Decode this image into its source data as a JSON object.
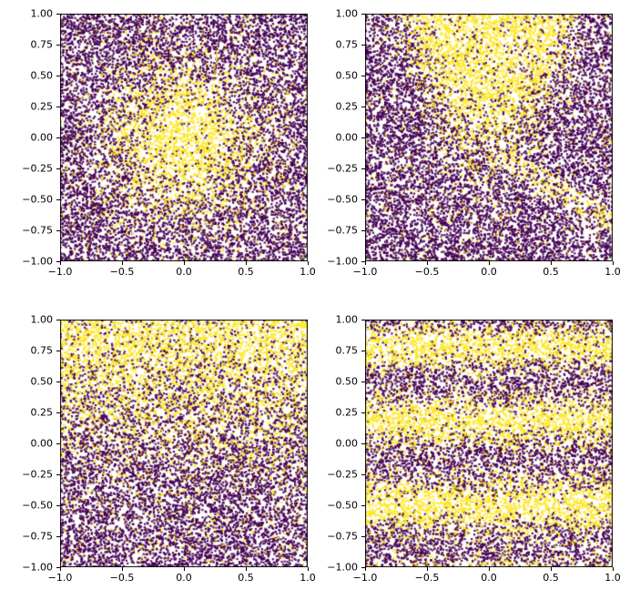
{
  "figure": {
    "background": "#ffffff",
    "kind": "2x2 grid of scatter plots (viridis binary-labeled point clouds)"
  },
  "chart_data": [
    {
      "type": "scatter",
      "position": "top-left",
      "title": "",
      "xlabel": "",
      "ylabel": "",
      "x_range": [
        -1,
        1
      ],
      "y_range": [
        -1,
        1
      ],
      "x_ticks": [
        -1.0,
        -0.5,
        0.0,
        0.5,
        1.0
      ],
      "x_tick_labels": [
        "−1.0",
        "−0.5",
        "0.0",
        "0.5",
        "1.0"
      ],
      "y_ticks": [
        1.0,
        0.75,
        0.5,
        0.25,
        0.0,
        -0.25,
        -0.5,
        -0.75,
        -1.0
      ],
      "y_tick_labels": [
        "1.00",
        "0.75",
        "0.50",
        "0.25",
        "0.00",
        "−0.25",
        "−0.50",
        "−0.75",
        "−1.00"
      ],
      "grid": false,
      "legend": false,
      "n_points": 12000,
      "marker_size_px": 2.2,
      "colormap": "viridis",
      "colors": {
        "low": "#440154",
        "high": "#fde725"
      },
      "pattern": {
        "kind": "radial_blob",
        "center": [
          0,
          0
        ],
        "sigma": 0.38,
        "base_rate": 0.07,
        "peak_rate": 0.95
      },
      "description": "Dense yellow cluster at the center fading radially into purple noise"
    },
    {
      "type": "scatter",
      "position": "top-right",
      "title": "",
      "xlabel": "",
      "ylabel": "",
      "x_range": [
        -1,
        1
      ],
      "y_range": [
        -1,
        1
      ],
      "x_ticks": [
        -1.0,
        -0.5,
        0.0,
        0.5,
        1.0
      ],
      "x_tick_labels": [
        "−1.0",
        "−0.5",
        "0.0",
        "0.5",
        "1.0"
      ],
      "y_ticks": [
        1.0,
        0.75,
        0.5,
        0.25,
        0.0,
        -0.25,
        -0.5,
        -0.75,
        -1.0
      ],
      "y_tick_labels": [
        "1.00",
        "0.75",
        "0.50",
        "0.25",
        "0.00",
        "−0.25",
        "−0.50",
        "−0.75",
        "−1.00"
      ],
      "grid": false,
      "legend": false,
      "n_points": 12000,
      "marker_size_px": 2.2,
      "colormap": "viridis",
      "colors": {
        "low": "#440154",
        "high": "#fde725"
      },
      "pattern": {
        "kind": "cone_and_stripe",
        "parabola_a": 2.2,
        "parabola_c": -0.05,
        "steepness": 5,
        "stripe_slope": -0.6,
        "stripe_intercept": -0.08,
        "stripe_halfwidth": 0.1,
        "base_rate": 0.07,
        "peak_rate": 0.9
      },
      "description": "Yellow cone widening toward the top center plus a faint diagonal yellow band descending to the lower right"
    },
    {
      "type": "scatter",
      "position": "bottom-left",
      "title": "",
      "xlabel": "",
      "ylabel": "",
      "x_range": [
        -1,
        1
      ],
      "y_range": [
        -1,
        1
      ],
      "x_ticks": [
        -1.0,
        -0.5,
        0.0,
        0.5,
        1.0
      ],
      "x_tick_labels": [
        "−1.0",
        "−0.5",
        "0.0",
        "0.5",
        "1.0"
      ],
      "y_ticks": [
        1.0,
        0.75,
        0.5,
        0.25,
        0.0,
        -0.25,
        -0.5,
        -0.75,
        -1.0
      ],
      "y_tick_labels": [
        "1.00",
        "0.75",
        "0.50",
        "0.25",
        "0.00",
        "−0.25",
        "−0.50",
        "−0.75",
        "−1.00"
      ],
      "grid": false,
      "legend": false,
      "n_points": 12000,
      "marker_size_px": 2.2,
      "colormap": "viridis",
      "colors": {
        "low": "#440154",
        "high": "#fde725"
      },
      "pattern": {
        "kind": "top_gradient",
        "center_y": 0.3,
        "steepness": 3.2,
        "base_rate": 0.06,
        "peak_rate": 0.92
      },
      "description": "Yellow density increasing toward the top edge, purple toward the bottom"
    },
    {
      "type": "scatter",
      "position": "bottom-right",
      "title": "",
      "xlabel": "",
      "ylabel": "",
      "x_range": [
        -1,
        1
      ],
      "y_range": [
        -1,
        1
      ],
      "x_ticks": [
        -1.0,
        -0.5,
        0.0,
        0.5,
        1.0
      ],
      "x_tick_labels": [
        "−1.0",
        "−0.5",
        "0.0",
        "0.5",
        "1.0"
      ],
      "y_ticks": [
        1.0,
        0.75,
        0.5,
        0.25,
        0.0,
        -0.25,
        -0.5,
        -0.75,
        -1.0
      ],
      "y_tick_labels": [
        "1.00",
        "0.75",
        "0.50",
        "0.25",
        "0.00",
        "−0.25",
        "−0.50",
        "−0.75",
        "−1.00"
      ],
      "grid": false,
      "legend": false,
      "n_points": 12000,
      "marker_size_px": 2.2,
      "colormap": "viridis",
      "colors": {
        "low": "#440154",
        "high": "#fde725"
      },
      "pattern": {
        "kind": "horizontal_bands",
        "band_centers": [
          0.78,
          0.18,
          -0.5,
          -1.15
        ],
        "band_sigmas": [
          0.12,
          0.13,
          0.15,
          0.12
        ],
        "base_rate": 0.07,
        "peak_rate": 0.92
      },
      "description": "Three horizontal yellow bands (near y=0.78, y=0.18, y=-0.5) separated by purple bands"
    }
  ]
}
